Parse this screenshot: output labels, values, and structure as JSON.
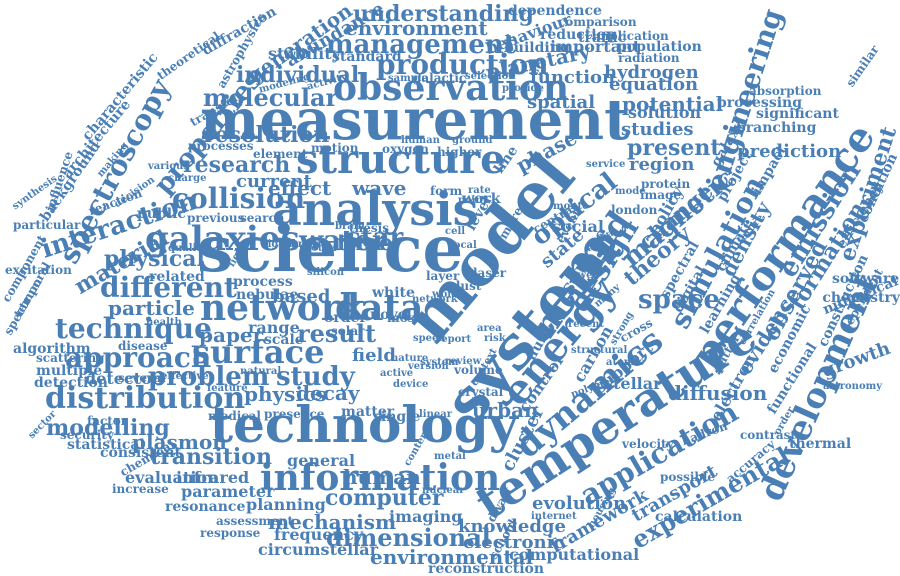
{
  "colors": {
    "word": "#4a7fb5",
    "background": "#ffffff"
  },
  "words": [
    "measurement",
    "science",
    "model",
    "system",
    "technology",
    "temperature",
    "network",
    "data",
    "analysis",
    "structure",
    "observation",
    "performance",
    "energy",
    "method",
    "information",
    "dynamics",
    "application",
    "development",
    "galaxies",
    "surface",
    "distribution",
    "technique",
    "approach",
    "production",
    "management",
    "spectroscopy",
    "interaction",
    "collision",
    "design",
    "simulation",
    "engineering",
    "emission",
    "magnetic",
    "optical",
    "experimental",
    "problem",
    "study",
    "research",
    "molecular",
    "individual",
    "properties",
    "understanding",
    "environment",
    "generation",
    "abundance",
    "dependence",
    "comparison",
    "reduction",
    "implication",
    "behaviour",
    "building",
    "important",
    "population",
    "radiation",
    "hydrogen",
    "planetary",
    "function",
    "equation",
    "potential",
    "solution",
    "studies",
    "present",
    "region",
    "phase",
    "spatial",
    "current",
    "effect",
    "wave",
    "water",
    "star",
    "time",
    "physical",
    "material",
    "different",
    "particle",
    "paper",
    "range",
    "result",
    "field",
    "detector",
    "modelling",
    "physics",
    "decay",
    "transition",
    "plasmon",
    "infrared",
    "evaluation",
    "parameter",
    "computer",
    "human",
    "general",
    "resonance",
    "planning",
    "mechanism",
    "dimensional",
    "circumstellar",
    "frequency",
    "imaging",
    "knowledge",
    "electronic",
    "environmental",
    "computational",
    "reconstruction",
    "evolution",
    "framework",
    "transport",
    "urban",
    "cluster",
    "control",
    "source",
    "social",
    "state",
    "space",
    "theory",
    "change",
    "density",
    "diffusion",
    "experiment",
    "formation",
    "observed",
    "evidence",
    "electron",
    "growth",
    "construction",
    "condition",
    "software",
    "chemistry",
    "numerical",
    "astronomy",
    "economic",
    "functional",
    "thermal",
    "dependent",
    "efficiency",
    "prediction",
    "significant",
    "processing",
    "absorption",
    "branching",
    "resolution",
    "processes",
    "process",
    "contrast",
    "learning",
    "climate",
    "impact",
    "galaxy",
    "project",
    "spectral",
    "digital",
    "policy",
    "image",
    "protein",
    "london",
    "mode",
    "service",
    "higher",
    "oxygen",
    "motion",
    "element",
    "charge",
    "various",
    "previous",
    "search",
    "public",
    "quality",
    "related",
    "health",
    "disease",
    "effective",
    "several",
    "natural",
    "feature",
    "medical",
    "presence",
    "matter",
    "single",
    "factor",
    "security",
    "statistical",
    "consistent",
    "chemical",
    "increase",
    "assessment",
    "response",
    "algorithm",
    "scattering",
    "multiple",
    "detection",
    "spectrum",
    "component",
    "excitation",
    "temporal",
    "particular",
    "synthesis",
    "influence",
    "background",
    "architecture",
    "characteristic",
    "theoretical",
    "diffraction",
    "astrophysics",
    "modeling",
    "activity",
    "stability",
    "standard",
    "sample",
    "galactic",
    "selection",
    "provide",
    "reaction",
    "transfer",
    "making",
    "decision",
    "nebulae",
    "based",
    "order",
    "solar",
    "novel",
    "scale",
    "silicon",
    "light",
    "signal",
    "proton",
    "survey",
    "white",
    "cell",
    "local",
    "layer",
    "dust",
    "laser",
    "form",
    "rate",
    "point",
    "brain",
    "thesis",
    "work",
    "level",
    "line",
    "more",
    "most",
    "area",
    "speed",
    "world",
    "volume",
    "active",
    "linear",
    "device",
    "metal",
    "nuclear",
    "content",
    "context",
    "report",
    "network",
    "risk",
    "fluid",
    "event",
    "lower",
    "recent",
    "strong",
    "atomic",
    "stellar",
    "carbon",
    "support",
    "velocity",
    "hadron",
    "possible",
    "accuracy",
    "calculation",
    "polymer",
    "pattern",
    "human",
    "ground",
    "monte",
    "central",
    "cross",
    "future",
    "global",
    "many",
    "traffic",
    "similar",
    "correlation",
    "structural",
    "dwarf",
    "school",
    "housing",
    "internet",
    "version",
    "nature",
    "review",
    "sector",
    "crystal",
    "system",
    "order",
    "person"
  ]
}
